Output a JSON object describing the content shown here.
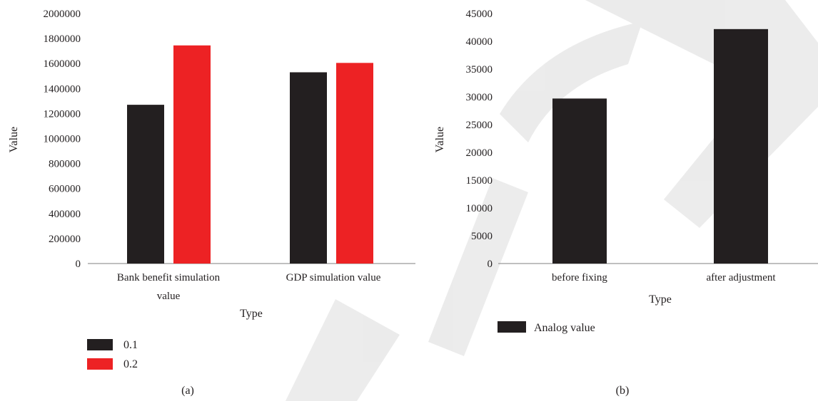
{
  "colors": {
    "series_black": "#231f20",
    "series_red": "#ed2224",
    "axis": "#7f7f7f",
    "watermark": "#e0e0e0"
  },
  "chart_data": [
    {
      "panel_label": "(a)",
      "type": "bar",
      "categories": [
        [
          "Bank benefit simulation",
          "value"
        ],
        [
          "GDP simulation value"
        ]
      ],
      "series": [
        {
          "name": "0.1",
          "color": "#231f20",
          "values": [
            1270000,
            1530000
          ]
        },
        {
          "name": "0.2",
          "color": "#ed2224",
          "values": [
            1745000,
            1605000
          ]
        }
      ],
      "xlabel": "Type",
      "ylabel": "Value",
      "ylim": [
        0,
        2000000
      ],
      "yticks": [
        "0",
        "200000",
        "400000",
        "600000",
        "800000",
        "1000000",
        "1200000",
        "1400000",
        "1600000",
        "1800000",
        "2000000"
      ],
      "grid": false,
      "legend": "bottom-left"
    },
    {
      "panel_label": "(b)",
      "type": "bar",
      "categories": [
        [
          "before fixing"
        ],
        [
          "after adjustment"
        ]
      ],
      "series": [
        {
          "name": "Analog value",
          "color": "#231f20",
          "values": [
            29700,
            42200
          ]
        }
      ],
      "xlabel": "Type",
      "ylabel": "Value",
      "ylim": [
        0,
        45000
      ],
      "yticks": [
        "0",
        "5000",
        "10000",
        "15000",
        "20000",
        "25000",
        "30000",
        "35000",
        "40000",
        "45000"
      ],
      "grid": false,
      "legend": "bottom-left"
    }
  ]
}
